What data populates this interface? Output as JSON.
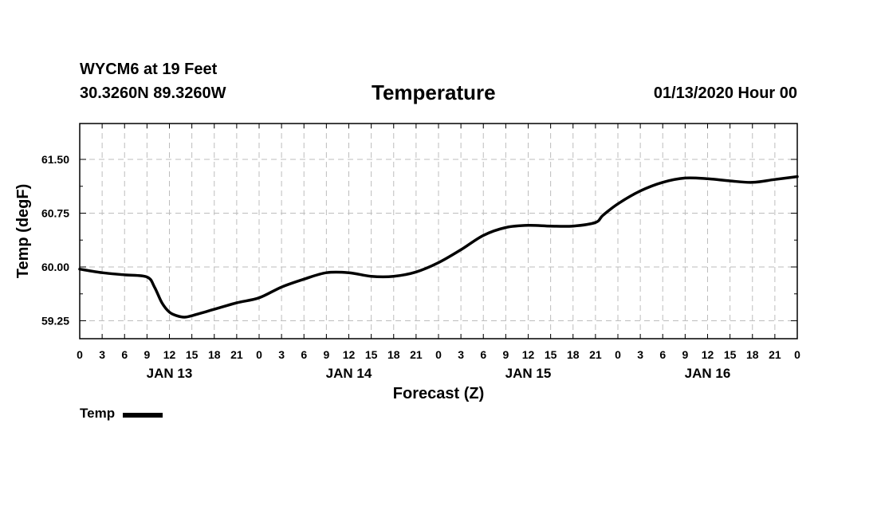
{
  "header": {
    "station": "WYCM6 at 19 Feet",
    "coords": "30.3260N 89.3260W",
    "title": "Temperature",
    "valid": "01/13/2020 Hour 00"
  },
  "chart_data": {
    "type": "line",
    "title": "Temperature",
    "xlabel": "Forecast (Z)",
    "ylabel": "Temp (degF)",
    "x_unit": "forecast hour",
    "xlim": [
      0,
      96
    ],
    "ylim": [
      59.0,
      62.0
    ],
    "yticks": [
      59.25,
      60.0,
      60.75,
      61.5
    ],
    "ytick_labels": [
      "59.25",
      "60.00",
      "60.75",
      "61.50"
    ],
    "xtick_labels": [
      "0",
      "3",
      "6",
      "9",
      "12",
      "15",
      "18",
      "21",
      "0",
      "3",
      "6",
      "9",
      "12",
      "15",
      "18",
      "21",
      "0",
      "3",
      "6",
      "9",
      "12",
      "15",
      "18",
      "21",
      "0",
      "3",
      "6",
      "9",
      "12",
      "15",
      "18",
      "21",
      "0"
    ],
    "day_labels": [
      {
        "label": "JAN 13",
        "hour": 12
      },
      {
        "label": "JAN 14",
        "hour": 36
      },
      {
        "label": "JAN 15",
        "hour": 60
      },
      {
        "label": "JAN 16",
        "hour": 84
      }
    ],
    "grid": true,
    "legend": "bottom-left",
    "series": [
      {
        "name": "Temp",
        "color": "#000000",
        "x": [
          0,
          3,
          6,
          9,
          10,
          11,
          12,
          13,
          14,
          15,
          18,
          21,
          24,
          27,
          30,
          33,
          36,
          39,
          42,
          45,
          48,
          51,
          54,
          57,
          60,
          63,
          66,
          69,
          70,
          72,
          75,
          78,
          81,
          84,
          87,
          90,
          93,
          96
        ],
        "y": [
          59.97,
          59.92,
          59.89,
          59.86,
          59.72,
          59.5,
          59.37,
          59.32,
          59.3,
          59.32,
          59.41,
          59.5,
          59.57,
          59.72,
          59.83,
          59.92,
          59.92,
          59.87,
          59.87,
          59.93,
          60.06,
          60.24,
          60.44,
          60.55,
          60.58,
          60.57,
          60.57,
          60.62,
          60.72,
          60.88,
          61.06,
          61.18,
          61.24,
          61.23,
          61.2,
          61.18,
          61.22,
          61.26
        ]
      }
    ]
  }
}
